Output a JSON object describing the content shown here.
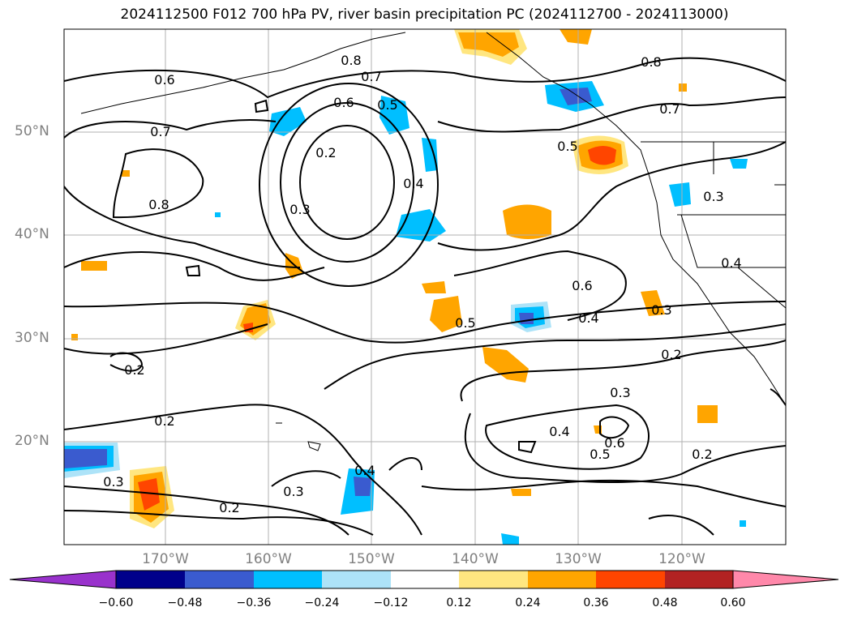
{
  "title": "2024112500 F012 700 hPa PV, river basin precipitation PC (2024112700 - 2024113000)",
  "lat_labels": [
    "50°N",
    "40°N",
    "30°N",
    "20°N"
  ],
  "lon_labels": [
    "170°W",
    "160°W",
    "150°W",
    "140°W",
    "130°W",
    "120°W"
  ],
  "contour_labels": [
    "0.6",
    "0.7",
    "0.8",
    "0.8",
    "0.7",
    "0.6",
    "0.5",
    "0.2",
    "0.3",
    "0.4",
    "0.8",
    "0.5",
    "0.7",
    "0.3",
    "0.4",
    "0.6",
    "0.5",
    "0.4",
    "0.3",
    "0.2",
    "0.2",
    "0.2",
    "0.3",
    "0.4",
    "0.5",
    "0.6",
    "0.2",
    "0.3",
    "0.3",
    "0.2",
    "0.4"
  ],
  "colorbar": {
    "ticks": [
      "−0.60",
      "−0.48",
      "−0.36",
      "−0.24",
      "−0.12",
      "0.12",
      "0.24",
      "0.36",
      "0.48",
      "0.60"
    ],
    "colors": [
      "#9932CC",
      "#00008B",
      "#3A5BCF",
      "#00BFFF",
      "#ADE3F8",
      "#FFFFFF",
      "#FFE680",
      "#FFA500",
      "#FF4500",
      "#B22222",
      "#FF88AA"
    ]
  }
}
